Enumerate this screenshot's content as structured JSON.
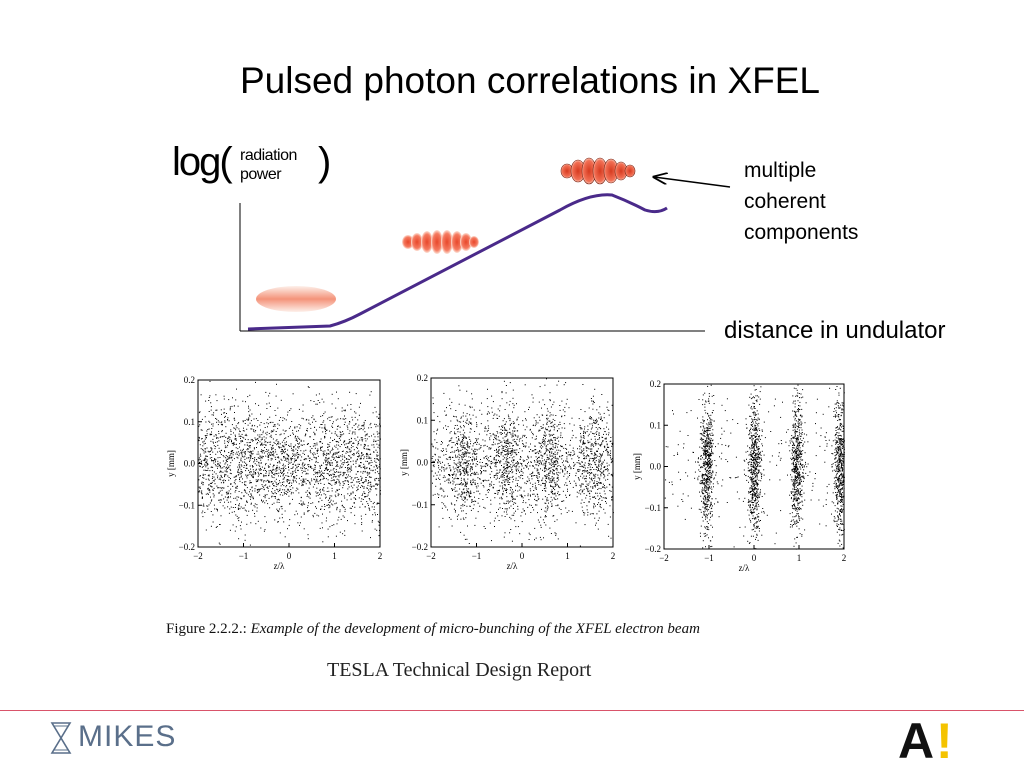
{
  "slide": {
    "title": "Pulsed photon correlations in XFEL",
    "ylabel": {
      "log": "log(",
      "line1": "radiation",
      "line2": "power",
      "close": ")"
    },
    "annotation_lines": [
      "multiple",
      "coherent",
      "components"
    ],
    "xaxis_label": "distance in undulator",
    "caption_prefix": "Figure 2.2.2.: ",
    "caption_text": "Example of the development of micro-bunching of the XFEL electron beam",
    "source": "TESLA Technical Design Report",
    "logo_left": "MIKES",
    "logo_right_letter": "A",
    "logo_right_mark": "!"
  },
  "colors": {
    "curve": "#4a2a8a",
    "bunch": "#e8472a",
    "accent_rule": "#d9546a",
    "aalto_mark": "#f4c300",
    "mikes_text": "#5a6f8a"
  },
  "bunch_stages": [
    {
      "stage": "early",
      "slices": 0
    },
    {
      "stage": "middle",
      "slices": 8
    },
    {
      "stage": "late",
      "slices": 7
    }
  ],
  "chart_data": [
    {
      "type": "scatter",
      "xlabel": "z/λ",
      "ylabel": "y [mm]",
      "xlim": [
        -2,
        2
      ],
      "ylim": [
        -0.2,
        0.2
      ],
      "xticks": [
        "−2",
        "−1",
        "0",
        "1",
        "2"
      ],
      "yticks": [
        "0.2",
        "0.1",
        "0.0",
        "−0.1",
        "−0.2"
      ],
      "bunching": 0.0
    },
    {
      "type": "scatter",
      "xlabel": "z/λ",
      "ylabel": "y [mm]",
      "xlim": [
        -2,
        2
      ],
      "ylim": [
        -0.2,
        0.2
      ],
      "xticks": [
        "−2",
        "−1",
        "0",
        "1",
        "2"
      ],
      "yticks": [
        "0.2",
        "0.1",
        "0.0",
        "−0.1",
        "−0.2"
      ],
      "bunching": 0.5
    },
    {
      "type": "scatter",
      "xlabel": "z/λ",
      "ylabel": "y [mm]",
      "xlim": [
        -2,
        2
      ],
      "ylim": [
        -0.2,
        0.2
      ],
      "xticks": [
        "−2",
        "−1",
        "0",
        "1",
        "2"
      ],
      "yticks": [
        "0.2",
        "0.1",
        "0.0",
        "−0.1",
        "−0.2"
      ],
      "bunching": 0.9
    }
  ]
}
